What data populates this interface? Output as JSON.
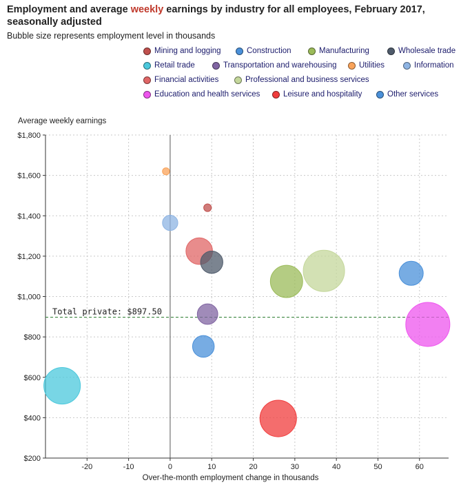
{
  "chart_data": {
    "type": "scatter",
    "title_part1": "Employment and average ",
    "title_highlight": "weekly",
    "title_part2": " earnings by industry for all employees, February 2017, seasonally adjusted",
    "subtitle": "Bubble size represents employment level in thousands",
    "xlabel": "Over-the-month employment change in thousands",
    "ylabel": "Average weekly earnings",
    "xlim": [
      -30,
      67
    ],
    "ylim": [
      200,
      1800
    ],
    "x_ticks": [
      -20,
      -10,
      0,
      10,
      20,
      30,
      40,
      50,
      60
    ],
    "y_ticks": [
      200,
      400,
      600,
      800,
      1000,
      1200,
      1400,
      1600,
      1800
    ],
    "y_tick_labels": [
      "$200",
      "$400",
      "$600",
      "$800",
      "$1,000",
      "$1,200",
      "$1,400",
      "$1,600",
      "$1,800"
    ],
    "grid": true,
    "legend_position": "top",
    "reference_line": {
      "y": 897.5,
      "label": "Total private: $897.50"
    },
    "series": [
      {
        "name": "Mining and logging",
        "x": 9,
        "y": 1440,
        "employment": 700,
        "color": "#c0504d"
      },
      {
        "name": "Construction",
        "x": 58,
        "y": 1115,
        "employment": 6900,
        "color": "#4a90d9"
      },
      {
        "name": "Manufacturing",
        "x": 28,
        "y": 1075,
        "employment": 12400,
        "color": "#9bbb59"
      },
      {
        "name": "Wholesale trade",
        "x": 10,
        "y": 1170,
        "employment": 5900,
        "color": "#4f5b6b"
      },
      {
        "name": "Retail trade",
        "x": -26,
        "y": 558,
        "employment": 15900,
        "color": "#4bc8dc"
      },
      {
        "name": "Transportation and warehousing",
        "x": 9,
        "y": 913,
        "employment": 5000,
        "color": "#8064a2"
      },
      {
        "name": "Utilities",
        "x": -1,
        "y": 1620,
        "employment": 600,
        "color": "#f9a35a"
      },
      {
        "name": "Information",
        "x": 0,
        "y": 1365,
        "employment": 2800,
        "color": "#8eb4e3"
      },
      {
        "name": "Financial activities",
        "x": 7,
        "y": 1225,
        "employment": 8400,
        "color": "#e06666"
      },
      {
        "name": "Professional and business services",
        "x": 37,
        "y": 1127,
        "employment": 20300,
        "color": "#c4d79b"
      },
      {
        "name": "Education and health services",
        "x": 62,
        "y": 862,
        "employment": 23100,
        "color": "#ee55ee"
      },
      {
        "name": "Leisure and hospitality",
        "x": 26,
        "y": 396,
        "employment": 15900,
        "color": "#f03c3c"
      },
      {
        "name": "Other services",
        "x": 8,
        "y": 753,
        "employment": 5600,
        "color": "#4a90d9"
      }
    ]
  }
}
